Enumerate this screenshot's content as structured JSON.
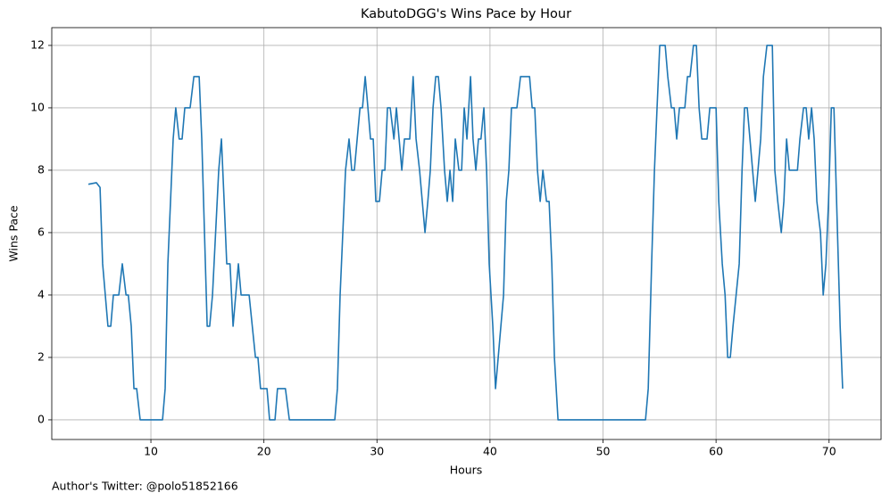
{
  "chart_data": {
    "type": "line",
    "title": "KabutoDGG's Wins Pace by Hour",
    "xlabel": "Hours",
    "ylabel": "Wins Pace",
    "annotation": "Author's Twitter: @polo51852166",
    "color": "#1f77b4",
    "grid": true,
    "xlim": [
      1.23,
      74.6
    ],
    "ylim": [
      -0.63,
      12.57
    ],
    "xticks": [
      10,
      20,
      30,
      40,
      50,
      60,
      70
    ],
    "yticks": [
      0,
      2,
      4,
      6,
      8,
      10,
      12
    ],
    "x": [
      4.47,
      5.18,
      5.5,
      5.73,
      6.2,
      6.45,
      6.68,
      7.16,
      7.47,
      7.8,
      8.0,
      8.26,
      8.5,
      8.74,
      9.05,
      11.03,
      11.26,
      11.5,
      11.97,
      12.2,
      12.5,
      12.76,
      13.0,
      13.47,
      13.8,
      14.27,
      14.5,
      14.98,
      15.2,
      15.45,
      16.0,
      16.24,
      16.48,
      16.71,
      17.0,
      17.27,
      17.74,
      17.98,
      18.69,
      19.25,
      19.47,
      19.7,
      20.27,
      20.5,
      20.98,
      21.2,
      21.9,
      22.25,
      26.27,
      26.5,
      26.74,
      27.22,
      27.53,
      27.77,
      28.0,
      28.25,
      28.5,
      28.72,
      28.96,
      29.2,
      29.43,
      29.67,
      29.9,
      30.22,
      30.46,
      30.7,
      30.93,
      31.17,
      31.5,
      31.72,
      32.2,
      32.43,
      32.9,
      33.2,
      33.46,
      33.77,
      34.25,
      34.5,
      34.72,
      34.96,
      35.2,
      35.43,
      35.67,
      35.98,
      36.22,
      36.46,
      36.7,
      36.93,
      37.25,
      37.49,
      37.72,
      37.96,
      38.28,
      38.5,
      38.75,
      38.98,
      39.2,
      39.46,
      39.7,
      39.93,
      40.25,
      40.49,
      41.2,
      41.44,
      41.67,
      41.9,
      42.38,
      42.7,
      43.5,
      43.73,
      43.96,
      44.2,
      44.44,
      44.68,
      45.0,
      45.23,
      45.47,
      45.7,
      46.02,
      53.76,
      54.0,
      54.3,
      54.55,
      54.78,
      55.02,
      55.5,
      55.73,
      56.05,
      56.29,
      56.52,
      56.76,
      57.24,
      57.47,
      57.7,
      58.0,
      58.26,
      58.5,
      58.74,
      59.2,
      59.45,
      60.0,
      60.24,
      60.55,
      60.8,
      61.03,
      61.26,
      61.5,
      62.05,
      62.3,
      62.52,
      62.76,
      63.0,
      63.47,
      63.95,
      64.19,
      64.5,
      64.98,
      65.2,
      65.46,
      65.77,
      66.0,
      66.24,
      66.48,
      67.2,
      67.42,
      67.74,
      67.97,
      68.2,
      68.45,
      68.68,
      68.92,
      69.24,
      69.48,
      69.72,
      69.95,
      70.2,
      70.43,
      70.98,
      71.2
    ],
    "values": [
      7.55,
      7.6,
      7.45,
      5,
      3,
      3,
      4,
      4,
      5,
      4,
      4,
      3,
      1,
      1,
      0,
      0,
      1,
      5,
      9,
      10,
      9,
      9,
      10,
      10,
      11,
      11,
      9,
      3,
      3,
      4,
      8,
      9,
      7,
      5,
      5,
      3,
      5,
      4,
      4,
      2,
      2,
      1,
      1,
      0,
      0,
      1,
      1,
      0,
      0,
      1,
      4,
      8,
      9,
      8,
      8,
      9,
      10,
      10,
      11,
      10,
      9,
      9,
      7,
      7,
      8,
      8,
      10,
      10,
      9,
      10,
      8,
      9,
      9,
      11,
      9,
      8,
      6,
      7,
      8,
      10,
      11,
      11,
      10,
      8,
      7,
      8,
      7,
      9,
      8,
      8,
      10,
      9,
      11,
      9,
      8,
      9,
      9,
      10,
      8,
      5,
      3,
      1,
      4,
      7,
      8,
      10,
      10,
      11,
      11,
      10,
      10,
      8,
      7,
      8,
      7,
      7,
      5,
      2,
      0,
      0,
      1,
      5,
      8,
      10,
      12,
      12,
      11,
      10,
      10,
      9,
      10,
      10,
      11,
      11,
      12,
      12,
      10,
      9,
      9,
      10,
      10,
      7,
      5,
      4,
      2,
      2,
      3,
      5,
      8,
      10,
      10,
      9,
      7,
      9,
      11,
      12,
      12,
      8,
      7,
      6,
      7,
      9,
      8,
      8,
      9,
      10,
      10,
      9,
      10,
      9,
      7,
      6,
      4,
      5,
      7,
      10,
      10,
      3,
      1
    ]
  }
}
